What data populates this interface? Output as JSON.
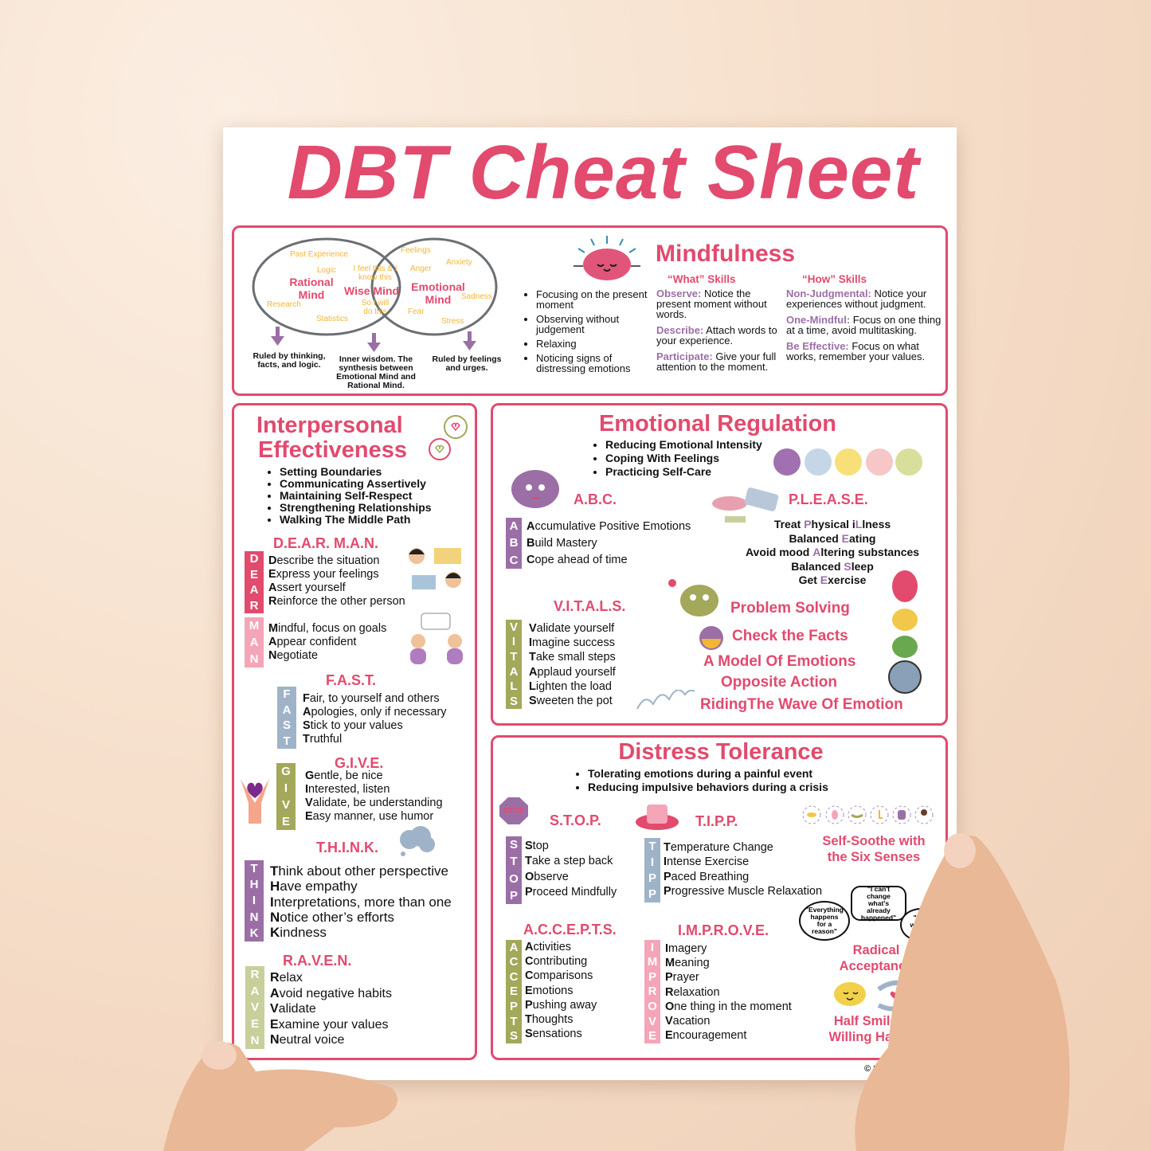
{
  "title": "DBT Cheat Sheet",
  "colors": {
    "accent": "#e24a6e",
    "purple": "#9b6fa6",
    "light_pink": "#f5a5b8",
    "blue_gray": "#9fb3c8",
    "olive": "#a3a85a",
    "light_olive": "#c8cf9a",
    "venn_word": "#f2b635"
  },
  "mindfulness": {
    "title": "Mindfulness",
    "venn": {
      "rational": "Rational Mind",
      "wise": "Wise Mind",
      "emotional": "Emotional Mind",
      "rational_words": [
        "Past Experience",
        "Logic",
        "Research",
        "Statistics"
      ],
      "wise_words": [
        "I feel this & I know this",
        "So I will do this"
      ],
      "emotional_words": [
        "Feelings",
        "Anxiety",
        "Anger",
        "Sadness",
        "Fear",
        "Stress"
      ],
      "captions": [
        "Ruled by thinking, facts, and logic.",
        "Inner wisdom. The synthesis between Emotional Mind and Rational Mind.",
        "Ruled by feelings and urges."
      ]
    },
    "bullets": [
      "Focusing on the present moment",
      "Observing without judgement",
      "Relaxing",
      "Noticing signs of distressing emotions"
    ],
    "what": {
      "title": "“What” Skills",
      "items": [
        {
          "label": "Observe:",
          "text": " Notice the present moment without words."
        },
        {
          "label": "Describe:",
          "text": " Attach words to your experience."
        },
        {
          "label": "Participate:",
          "text": " Give your full attention to the moment."
        }
      ]
    },
    "how": {
      "title": "“How” Skills",
      "items": [
        {
          "label": "Non-Judgmental:",
          "text": " Notice your experiences without judgment."
        },
        {
          "label": "One-Mindful:",
          "text": " Focus on one thing at a time, avoid multitasking."
        },
        {
          "label": "Be Effective:",
          "text": "  Focus on what works, remember your values."
        }
      ]
    }
  },
  "interpersonal": {
    "title_line1": "Interpersonal",
    "title_line2": "Effectiveness",
    "bullets": [
      "Setting Boundaries",
      "Communicating Assertively",
      "Maintaining Self-Respect",
      "Strengthening Relationships",
      "Walking The Middle Path"
    ],
    "dearman_title": "D.E.A.R. M.A.N.",
    "fast_title": "F.A.S.T.",
    "give_title": "G.I.V.E.",
    "think_title": "T.H.I.N.K.",
    "raven_title": "R.A.V.E.N."
  },
  "acronyms": {
    "dear": [
      "Describe the situation",
      "Express your feelings",
      "Assert yourself",
      "Reinforce the other person"
    ],
    "man": [
      "Mindful, focus on goals",
      "Appear confident",
      "Negotiate"
    ],
    "fast": [
      "Fair, to yourself and others",
      "Apologies, only if necessary",
      "Stick to your values",
      "Truthful"
    ],
    "give": [
      "Gentle, be nice",
      "Interested, listen",
      "Validate, be understanding",
      "Easy manner, use humor"
    ],
    "think": [
      "Think about other perspective",
      "Have empathy",
      "Interpretations, more than one",
      "Notice other’s efforts",
      "Kindness"
    ],
    "raven": [
      "Relax",
      "Avoid negative habits",
      "Validate",
      "Examine your values",
      "Neutral voice"
    ],
    "abc": [
      "Accumulative Positive Emotions",
      "Build Mastery",
      "Cope ahead of time"
    ],
    "vitals": [
      "Validate yourself",
      "Imagine success",
      "Take small steps",
      "Applaud yourself",
      "Lighten the load",
      "Sweeten the pot"
    ],
    "stop": [
      "Stop",
      "Take a step back",
      "Observe",
      "Proceed Mindfully"
    ],
    "tipp": [
      "Temperature Change",
      "Intense Exercise",
      "Paced Breathing",
      "Progressive Muscle Relaxation"
    ],
    "accepts": [
      "Activities",
      "Contributing",
      "Comparisons",
      "Emotions",
      "Pushing away",
      "Thoughts",
      "Sensations"
    ],
    "improve": [
      "Imagery",
      "Meaning",
      "Prayer",
      "Relaxation",
      "One thing in the moment",
      "Vacation",
      "Encouragement"
    ]
  },
  "emotional_regulation": {
    "title": "Emotional Regulation",
    "bullets": [
      "Reducing Emotional Intensity",
      "Coping With Feelings",
      "Practicing Self-Care"
    ],
    "abc_title": "A.B.C.",
    "please_title": "P.L.E.A.S.E.",
    "vitals_title": "V.I.T.A.L.S.",
    "please": [
      [
        "Treat ",
        "P",
        "hysical i",
        "L",
        "lness"
      ],
      [
        "Balanced ",
        "E",
        "ating"
      ],
      [
        "Avoid mood ",
        "A",
        "ltering substances"
      ],
      [
        "Balanced ",
        "S",
        "leep"
      ],
      [
        "Get ",
        "E",
        "xercise"
      ]
    ],
    "skills": [
      "Problem Solving",
      "Check the Facts",
      "A Model Of Emotions",
      "Opposite Action",
      "RidingThe Wave Of Emotion"
    ]
  },
  "distress_tolerance": {
    "title": "Distress Tolerance",
    "bullets": [
      "Tolerating emotions during a painful event",
      "Reducing impulsive behaviors during a crisis"
    ],
    "stop_title": "S.T.O.P.",
    "stop_sign": "STOP",
    "tipp_title": "T.I.P.P.",
    "accepts_title": "A.C.C.E.P.T.S.",
    "improve_title": "I.M.P.R.O.V.E.",
    "self_soothe": "Self-Soothe with the Six Senses",
    "quotes": [
      "\"Everything happens for a reason\"",
      "\"I can't change what's already happened\"",
      "\"It is what it is\""
    ],
    "radical": "Radical Acceptance",
    "half_smile": "Half Smile & Willing Hands"
  },
  "copyright": "© 2024 MI"
}
